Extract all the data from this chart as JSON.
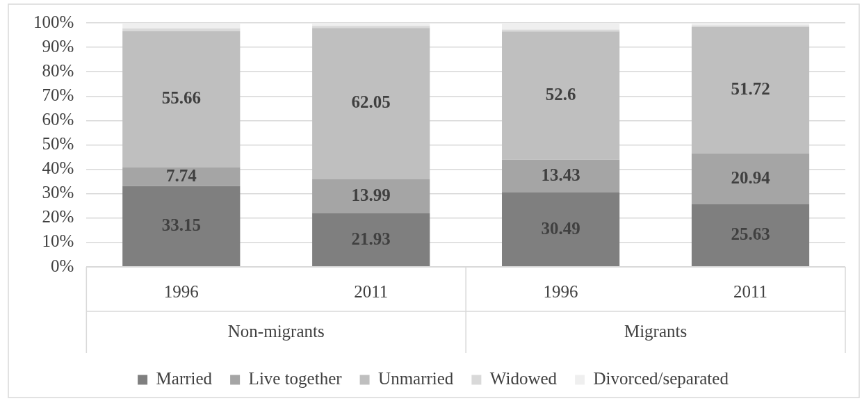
{
  "chart_data": {
    "type": "bar",
    "stacked": true,
    "categories": [
      "1996",
      "2011",
      "1996",
      "2011"
    ],
    "annotations": [
      "Non-migrants",
      "Migrants"
    ],
    "series": [
      {
        "name": "Married",
        "color": "#7f7f7f",
        "values": [
          33.15,
          21.93,
          30.49,
          25.63
        ],
        "value_labels": [
          "33.15",
          "21.93",
          "30.49",
          "25.63"
        ]
      },
      {
        "name": "Live together",
        "color": "#a5a5a5",
        "values": [
          7.74,
          13.99,
          13.43,
          20.94
        ],
        "value_labels": [
          "7.74",
          "13.99",
          "13.43",
          "20.94"
        ]
      },
      {
        "name": "Unmarried",
        "color": "#bfbfbf",
        "values": [
          55.66,
          62.05,
          52.6,
          51.72
        ],
        "value_labels": [
          "55.66",
          "62.05",
          "52.6",
          "51.72"
        ]
      },
      {
        "name": "Widowed",
        "color": "#d9d9d9",
        "values": [
          1.2,
          0.8,
          0.8,
          0.7
        ]
      },
      {
        "name": "Divorced/separated",
        "color": "#efefef",
        "values": [
          2.2,
          1.0,
          2.7,
          0.9
        ]
      }
    ],
    "ylim": [
      0,
      100
    ],
    "yticks": [
      {
        "value": 0,
        "label": "0%"
      },
      {
        "value": 10,
        "label": "10%"
      },
      {
        "value": 20,
        "label": "20%"
      },
      {
        "value": 30,
        "label": "30%"
      },
      {
        "value": 40,
        "label": "40%"
      },
      {
        "value": 50,
        "label": "50%"
      },
      {
        "value": 60,
        "label": "60%"
      },
      {
        "value": 70,
        "label": "70%"
      },
      {
        "value": 80,
        "label": "80%"
      },
      {
        "value": 90,
        "label": "90%"
      },
      {
        "value": 100,
        "label": "100%"
      }
    ],
    "grid": "y",
    "legend": "bottom"
  }
}
